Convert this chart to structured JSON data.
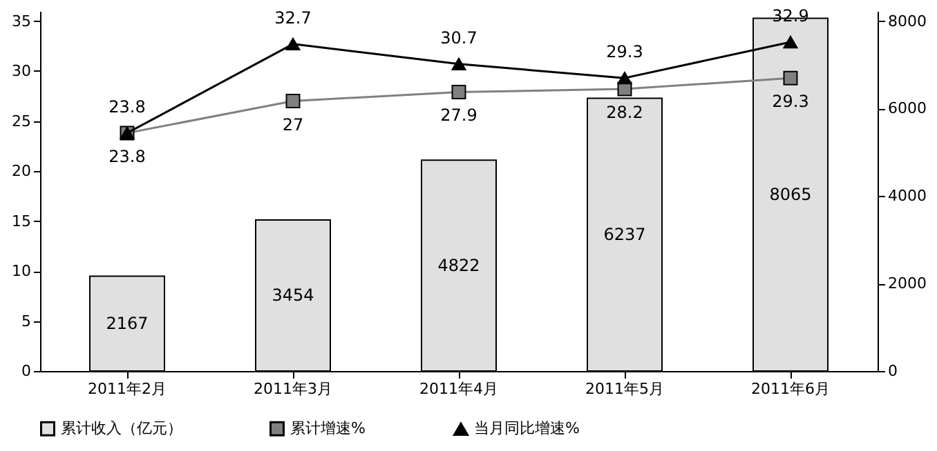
{
  "chart_data": {
    "type": "bar",
    "categories": [
      "2011年2月",
      "2011年3月",
      "2011年4月",
      "2011年5月",
      "2011年6月"
    ],
    "series": [
      {
        "name": "累计收入（亿元）",
        "axis": "y2",
        "color": "#e0e0e0",
        "values": [
          2167,
          3454,
          4822,
          6237,
          8065
        ]
      },
      {
        "name": "累计增速%",
        "type": "line",
        "marker": "square",
        "color": "#808080",
        "values": [
          23.8,
          27,
          27.9,
          28.2,
          29.3
        ]
      },
      {
        "name": "当月同比增速%",
        "type": "line",
        "marker": "triangle",
        "color": "#000000",
        "values": [
          23.8,
          32.7,
          30.7,
          29.3,
          32.9
        ]
      }
    ],
    "ylim": [
      0,
      36
    ],
    "yticks": [
      0,
      5,
      10,
      15,
      20,
      25,
      30,
      35
    ],
    "y2lim": [
      0,
      8230
    ],
    "y2ticks": [
      0,
      2000,
      4000,
      6000,
      8000
    ],
    "data_labels": true,
    "legend": "bottom",
    "grid": false
  }
}
